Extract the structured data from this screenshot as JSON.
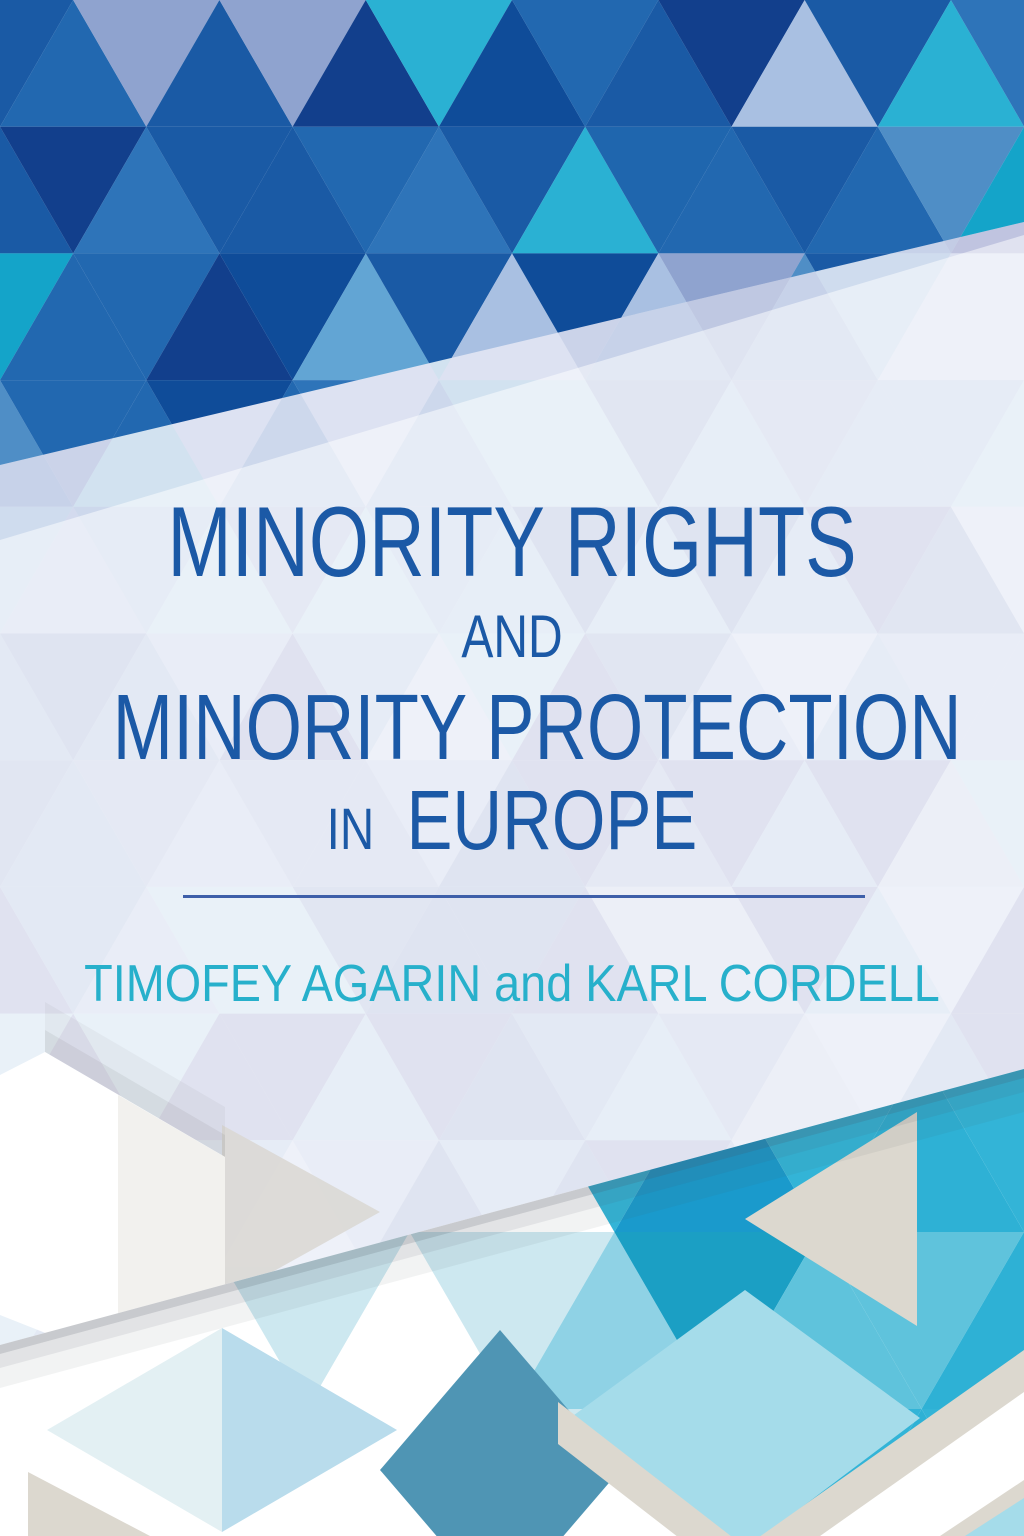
{
  "cover": {
    "title_line1": "MINORITY RIGHTS",
    "title_line2": "AND",
    "title_line3": "MINORITY PROTECTION",
    "title_line4_small": "IN",
    "title_line4_large": "EUROPE",
    "byline": "TIMOFEY AGARIN and KARL CORDELL",
    "colors": {
      "title_blue": "#1b59a6",
      "byline_teal": "#27b0cb",
      "divider_blue": "#3e5fa9",
      "sheet_light": "#dfe5f1"
    },
    "palettes": {
      "top_mosaic": [
        "#1a5aa5",
        "#1a5aa5",
        "#0f4c99",
        "#2268b0",
        "#2e74b9",
        "#4f8ec6",
        "#14a4c9",
        "#2ab1d3",
        "#62a5d4",
        "#8fa3cf",
        "#a9c0e2",
        "#123f8c",
        "#1a5aa5",
        "#2268b0",
        "#0f4c99",
        "#1f66ae"
      ],
      "mid_mosaic": [
        "#c3cce5",
        "#cbd3e9",
        "#d3daee",
        "#bfc8e2",
        "#d8deef",
        "#c7d2e9",
        "#dde2f2",
        "#cdd8ec",
        "#cfdcee",
        "#c0c4e0",
        "#d2e2f0"
      ],
      "bottom_vivid": [
        "#2eb1d5",
        "#45bada",
        "#1b9fc4",
        "#33b4d7",
        "#5fc3dc",
        "#1a9acc"
      ],
      "bottom_pale": [
        "#a8dcec",
        "#cde8f0",
        "#ffffff",
        "#8fd2e5"
      ],
      "white": "#ffffff",
      "beige": "#dcd8cf",
      "steel": "#4f95b4",
      "mint": "#e3f0f3",
      "pale_blue_half": "#b9dcec",
      "pale_cyan": "#a5dcea",
      "shadow_gray": "#4a4f5c",
      "hex_shadow": "#6b6b68",
      "hex_facet": "#f2f1ee",
      "gray_tri": "#d9d7d2"
    }
  }
}
